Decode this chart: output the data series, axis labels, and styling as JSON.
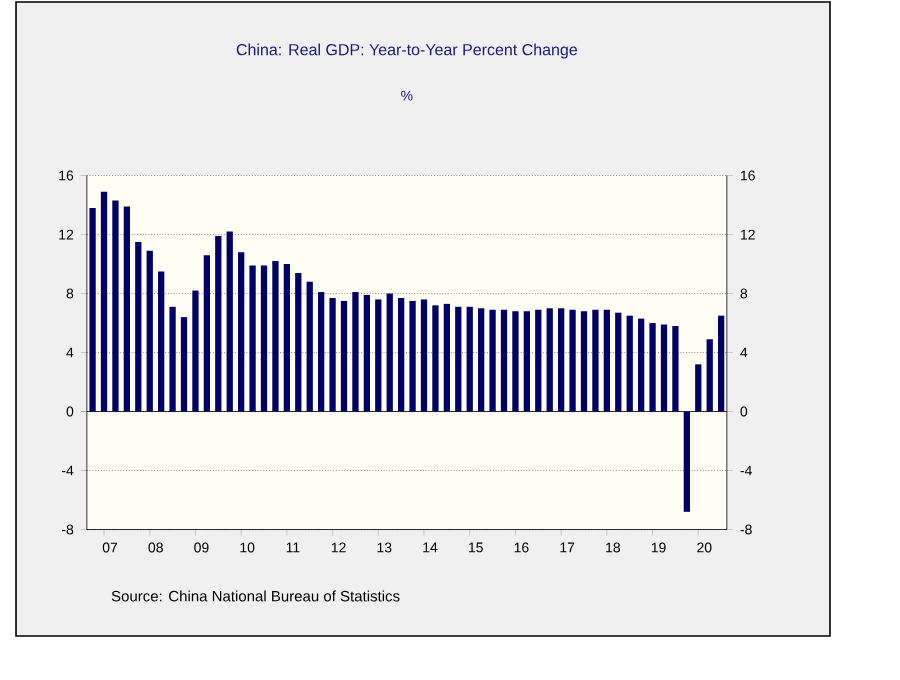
{
  "chart_data": {
    "type": "bar",
    "title": "China: Real GDP: Year-to-Year Percent Change",
    "subtitle": "%",
    "categories": [
      null,
      "07",
      null,
      null,
      null,
      "08",
      null,
      null,
      null,
      "09",
      null,
      null,
      null,
      "10",
      null,
      null,
      null,
      "11",
      null,
      null,
      null,
      "12",
      null,
      null,
      null,
      "13",
      null,
      null,
      null,
      "14",
      null,
      null,
      null,
      "15",
      null,
      null,
      null,
      "16",
      null,
      null,
      null,
      "17",
      null,
      null,
      null,
      "18",
      null,
      null,
      null,
      "19",
      null,
      null,
      null,
      "20",
      null,
      null
    ],
    "values": [
      13.8,
      14.9,
      14.3,
      13.9,
      11.5,
      10.9,
      9.5,
      7.1,
      6.4,
      8.2,
      10.6,
      11.9,
      12.2,
      10.8,
      9.9,
      9.9,
      10.2,
      10.0,
      9.4,
      8.8,
      8.1,
      7.7,
      7.5,
      8.1,
      7.9,
      7.6,
      8.0,
      7.7,
      7.5,
      7.6,
      7.2,
      7.3,
      7.1,
      7.1,
      7.0,
      6.9,
      6.9,
      6.8,
      6.8,
      6.9,
      7.0,
      7.0,
      6.9,
      6.8,
      6.9,
      6.9,
      6.7,
      6.5,
      6.3,
      6.0,
      5.9,
      5.8,
      -6.8,
      3.2,
      4.9,
      6.5
    ],
    "color": "#000066",
    "ylim": [
      -8,
      16
    ],
    "yticks": [
      -8,
      -4,
      0,
      4,
      8,
      12,
      16
    ],
    "y2lim": [
      -8,
      16
    ],
    "y2ticks": [
      -8,
      -4,
      0,
      4,
      8,
      12,
      16
    ],
    "grid": "y",
    "annotations": [
      "Source:  China National Bureau of Statistics"
    ]
  }
}
